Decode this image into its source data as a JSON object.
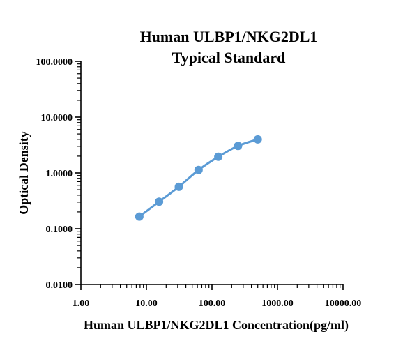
{
  "chart_data": {
    "type": "line",
    "title": [
      "Human ULBP1/NKG2DL1",
      "Typical Standard"
    ],
    "xlabel": "Human ULBP1/NKG2DL1 Concentration(pg/ml)",
    "ylabel": "Optical Density",
    "x_scale": "log",
    "y_scale": "log",
    "xlim": [
      1,
      10000
    ],
    "ylim": [
      0.01,
      100
    ],
    "x_ticks": [
      1,
      10,
      100,
      1000,
      10000
    ],
    "x_tick_labels": [
      "1.00",
      "10.00",
      "100.00",
      "1000.00",
      "10000.00"
    ],
    "y_ticks": [
      0.01,
      0.1,
      1,
      10,
      100
    ],
    "y_tick_labels": [
      "0.0100",
      "0.1000",
      "1.0000",
      "10.0000",
      "100.0000"
    ],
    "grid": false,
    "legend": "none",
    "series": [
      {
        "color": "#5b9bd5",
        "x": [
          7.8,
          15.6,
          31.25,
          62.5,
          125,
          250,
          500
        ],
        "y": [
          0.165,
          0.305,
          0.565,
          1.13,
          1.95,
          3.05,
          4.0
        ]
      }
    ]
  }
}
